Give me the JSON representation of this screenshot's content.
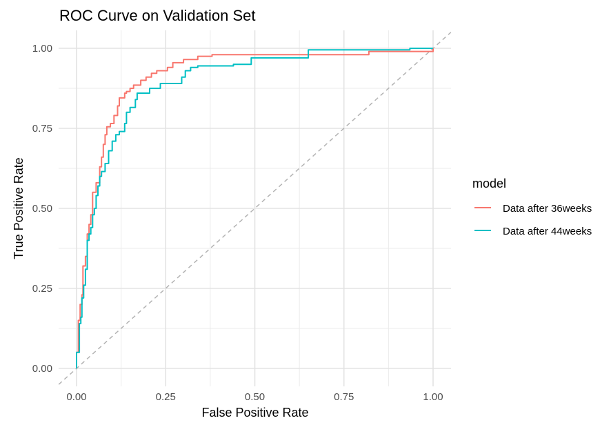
{
  "chart_data": {
    "type": "line",
    "title": "ROC Curve on Validation Set",
    "xlabel": "False Positive Rate",
    "ylabel": "True Positive Rate",
    "xlim": [
      -0.05,
      1.05
    ],
    "ylim": [
      -0.05,
      1.05
    ],
    "x_ticks": [
      "0.00",
      "0.25",
      "0.50",
      "0.75",
      "1.00"
    ],
    "y_ticks": [
      "0.00",
      "0.25",
      "0.50",
      "0.75",
      "1.00"
    ],
    "grid": true,
    "legend_title": "model",
    "legend_position": "right",
    "reference_line": {
      "x": [
        -0.05,
        1.05
      ],
      "y": [
        -0.05,
        1.05
      ],
      "color": "#b3b3b3",
      "style": "dashed"
    },
    "series": [
      {
        "name": "Data after 36weeks",
        "color": "#F8766D",
        "points": [
          [
            0.0,
            0.0
          ],
          [
            0.0,
            0.05
          ],
          [
            0.005,
            0.05
          ],
          [
            0.005,
            0.15
          ],
          [
            0.01,
            0.15
          ],
          [
            0.01,
            0.2
          ],
          [
            0.015,
            0.2
          ],
          [
            0.015,
            0.23
          ],
          [
            0.018,
            0.23
          ],
          [
            0.018,
            0.32
          ],
          [
            0.025,
            0.32
          ],
          [
            0.025,
            0.35
          ],
          [
            0.03,
            0.35
          ],
          [
            0.03,
            0.42
          ],
          [
            0.035,
            0.42
          ],
          [
            0.035,
            0.45
          ],
          [
            0.04,
            0.45
          ],
          [
            0.04,
            0.48
          ],
          [
            0.045,
            0.48
          ],
          [
            0.045,
            0.55
          ],
          [
            0.055,
            0.55
          ],
          [
            0.055,
            0.58
          ],
          [
            0.065,
            0.58
          ],
          [
            0.065,
            0.63
          ],
          [
            0.07,
            0.63
          ],
          [
            0.07,
            0.66
          ],
          [
            0.075,
            0.66
          ],
          [
            0.075,
            0.7
          ],
          [
            0.08,
            0.7
          ],
          [
            0.08,
            0.73
          ],
          [
            0.085,
            0.73
          ],
          [
            0.085,
            0.755
          ],
          [
            0.095,
            0.755
          ],
          [
            0.095,
            0.765
          ],
          [
            0.105,
            0.765
          ],
          [
            0.105,
            0.79
          ],
          [
            0.115,
            0.79
          ],
          [
            0.115,
            0.82
          ],
          [
            0.12,
            0.82
          ],
          [
            0.12,
            0.845
          ],
          [
            0.135,
            0.845
          ],
          [
            0.135,
            0.86
          ],
          [
            0.14,
            0.86
          ],
          [
            0.14,
            0.865
          ],
          [
            0.15,
            0.865
          ],
          [
            0.15,
            0.875
          ],
          [
            0.16,
            0.875
          ],
          [
            0.16,
            0.885
          ],
          [
            0.18,
            0.885
          ],
          [
            0.18,
            0.9
          ],
          [
            0.195,
            0.9
          ],
          [
            0.195,
            0.91
          ],
          [
            0.21,
            0.91
          ],
          [
            0.21,
            0.922
          ],
          [
            0.225,
            0.922
          ],
          [
            0.225,
            0.93
          ],
          [
            0.255,
            0.93
          ],
          [
            0.255,
            0.94
          ],
          [
            0.27,
            0.94
          ],
          [
            0.27,
            0.955
          ],
          [
            0.3,
            0.955
          ],
          [
            0.3,
            0.965
          ],
          [
            0.34,
            0.965
          ],
          [
            0.34,
            0.975
          ],
          [
            0.38,
            0.975
          ],
          [
            0.38,
            0.98
          ],
          [
            0.82,
            0.98
          ],
          [
            0.82,
            0.99
          ],
          [
            1.0,
            0.99
          ],
          [
            1.0,
            1.0
          ]
        ]
      },
      {
        "name": "Data after 44weeks",
        "color": "#00BFC4",
        "points": [
          [
            0.0,
            0.0
          ],
          [
            0.0,
            0.05
          ],
          [
            0.008,
            0.05
          ],
          [
            0.008,
            0.14
          ],
          [
            0.012,
            0.14
          ],
          [
            0.012,
            0.16
          ],
          [
            0.015,
            0.16
          ],
          [
            0.015,
            0.22
          ],
          [
            0.02,
            0.22
          ],
          [
            0.02,
            0.26
          ],
          [
            0.025,
            0.26
          ],
          [
            0.025,
            0.31
          ],
          [
            0.03,
            0.31
          ],
          [
            0.03,
            0.4
          ],
          [
            0.035,
            0.4
          ],
          [
            0.035,
            0.42
          ],
          [
            0.04,
            0.42
          ],
          [
            0.04,
            0.44
          ],
          [
            0.045,
            0.44
          ],
          [
            0.045,
            0.48
          ],
          [
            0.05,
            0.48
          ],
          [
            0.05,
            0.5
          ],
          [
            0.055,
            0.5
          ],
          [
            0.055,
            0.54
          ],
          [
            0.06,
            0.54
          ],
          [
            0.06,
            0.57
          ],
          [
            0.065,
            0.57
          ],
          [
            0.065,
            0.6
          ],
          [
            0.07,
            0.6
          ],
          [
            0.07,
            0.615
          ],
          [
            0.08,
            0.615
          ],
          [
            0.08,
            0.64
          ],
          [
            0.09,
            0.64
          ],
          [
            0.09,
            0.68
          ],
          [
            0.1,
            0.68
          ],
          [
            0.1,
            0.71
          ],
          [
            0.11,
            0.71
          ],
          [
            0.11,
            0.73
          ],
          [
            0.12,
            0.73
          ],
          [
            0.12,
            0.74
          ],
          [
            0.135,
            0.74
          ],
          [
            0.135,
            0.765
          ],
          [
            0.14,
            0.765
          ],
          [
            0.14,
            0.8
          ],
          [
            0.15,
            0.8
          ],
          [
            0.15,
            0.815
          ],
          [
            0.165,
            0.815
          ],
          [
            0.165,
            0.84
          ],
          [
            0.17,
            0.84
          ],
          [
            0.17,
            0.86
          ],
          [
            0.205,
            0.86
          ],
          [
            0.205,
            0.875
          ],
          [
            0.235,
            0.875
          ],
          [
            0.235,
            0.89
          ],
          [
            0.295,
            0.89
          ],
          [
            0.295,
            0.91
          ],
          [
            0.305,
            0.91
          ],
          [
            0.305,
            0.93
          ],
          [
            0.32,
            0.93
          ],
          [
            0.32,
            0.94
          ],
          [
            0.34,
            0.94
          ],
          [
            0.34,
            0.945
          ],
          [
            0.44,
            0.945
          ],
          [
            0.44,
            0.95
          ],
          [
            0.49,
            0.95
          ],
          [
            0.49,
            0.97
          ],
          [
            0.65,
            0.97
          ],
          [
            0.65,
            0.995
          ],
          [
            0.935,
            0.995
          ],
          [
            0.935,
            1.0
          ],
          [
            1.0,
            1.0
          ]
        ]
      }
    ]
  }
}
